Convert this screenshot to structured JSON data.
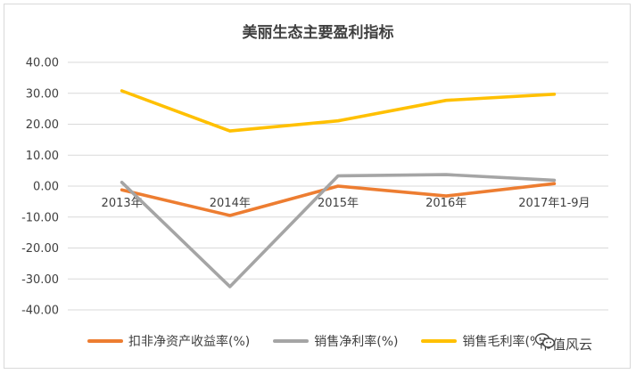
{
  "chart_data": {
    "type": "line",
    "title": "美丽生态主要盈利指标",
    "categories": [
      "2013年",
      "2014年",
      "2015年",
      "2016年",
      "2017年1-9月"
    ],
    "series": [
      {
        "name": "扣非净资产收益率(%)",
        "color": "#ED7D31",
        "values": [
          -1.2,
          -9.5,
          0.0,
          -3.2,
          0.8
        ]
      },
      {
        "name": "销售净利率(%)",
        "color": "#A5A5A5",
        "values": [
          1.2,
          -32.5,
          3.3,
          3.7,
          1.9
        ]
      },
      {
        "name": "销售毛利率(%)",
        "color": "#FFC000",
        "values": [
          30.8,
          17.8,
          21.1,
          27.7,
          29.7
        ]
      }
    ],
    "yticks": [
      "40.00",
      "30.00",
      "20.00",
      "10.00",
      "0.00",
      "-10.00",
      "-20.00",
      "-30.00",
      "-40.00"
    ],
    "ylim": [
      -40,
      40
    ],
    "grid": true,
    "legend_position": "bottom"
  },
  "legend": {
    "items": [
      {
        "label": "扣非净资产收益率(%)",
        "color": "#ED7D31"
      },
      {
        "label": "销售净利率(%)",
        "color": "#A5A5A5"
      },
      {
        "label": "销售毛利率(%)",
        "color": "#FFC000"
      }
    ]
  },
  "watermark": {
    "text": "市值风云",
    "icon": "wechat-icon"
  }
}
